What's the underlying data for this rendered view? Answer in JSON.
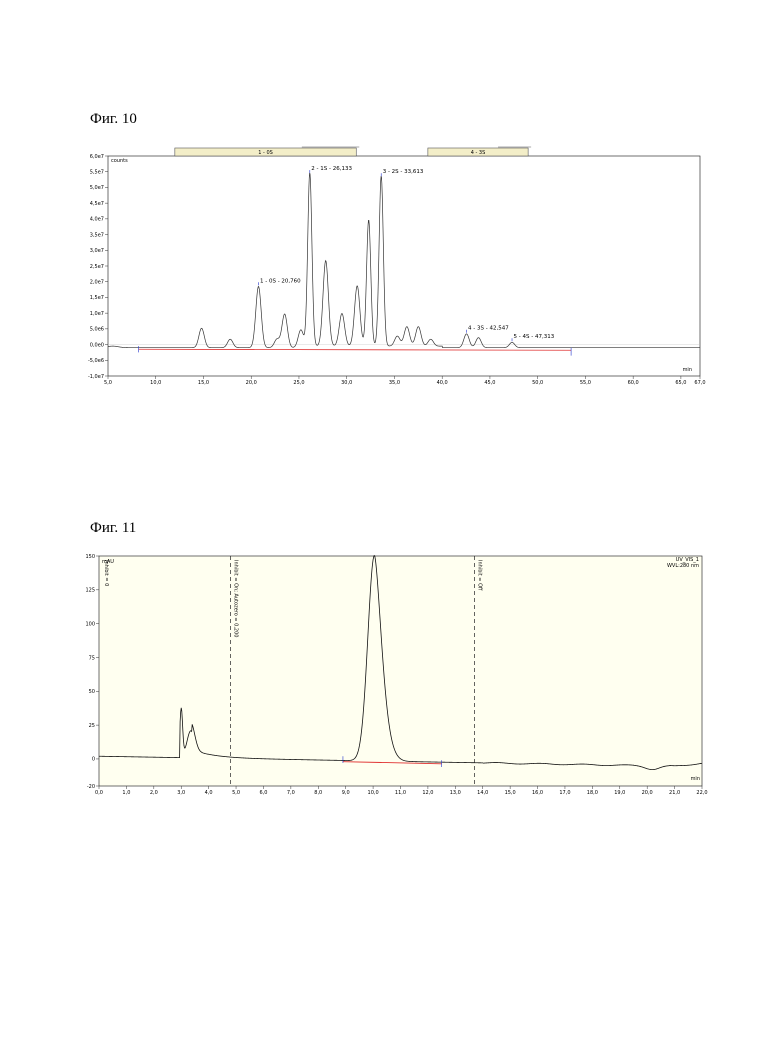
{
  "captions": {
    "fig10": "Фиг. 10",
    "fig11": "Фиг. 11"
  },
  "chart_data": [
    {
      "type": "line",
      "caption": "Фиг. 10",
      "ylabel": "counts",
      "xlabel": "min",
      "xlim": [
        5.0,
        67.0
      ],
      "ylim": [
        -10000000.0,
        60000000.0
      ],
      "x_ticks": [
        "5,0",
        "10,0",
        "15,0",
        "20,0",
        "25,0",
        "30,0",
        "35,0",
        "40,0",
        "45,0",
        "50,0",
        "55,0",
        "60,0",
        "65,0",
        "67,0"
      ],
      "y_ticks": [
        "6,0e7",
        "5,5e7",
        "5,0e7",
        "4,5e7",
        "4,0e7",
        "3,5e7",
        "3,0e7",
        "2,5e7",
        "2,0e7",
        "1,5e7",
        "1,0e7",
        "5,0e6",
        "0,0e0",
        "-5,0e6",
        "-1,0e7"
      ],
      "fraction_boxes": [
        {
          "label": "1 - 0S",
          "from": 12.0,
          "to": 31.0
        },
        {
          "label": "4 - 3S",
          "from": 38.5,
          "to": 49.0
        }
      ],
      "baseline_color": "#e03030",
      "peaks": [
        {
          "x": 14.8,
          "y": 5000000.0
        },
        {
          "x": 17.8,
          "y": 1500000.0
        },
        {
          "x": 20.76,
          "y": 18300000.0,
          "label": "1 - 0S - 20,760"
        },
        {
          "x": 22.7,
          "y": 1500000.0
        },
        {
          "x": 23.5,
          "y": 9500000.0
        },
        {
          "x": 25.2,
          "y": 4500000.0
        },
        {
          "x": 26.133,
          "y": 54000000.0,
          "label": "2 - 1S - 26,133"
        },
        {
          "x": 27.8,
          "y": 26000000.0
        },
        {
          "x": 29.5,
          "y": 9200000.0
        },
        {
          "x": 31.1,
          "y": 18000000.0
        },
        {
          "x": 32.3,
          "y": 39000000.0
        },
        {
          "x": 33.613,
          "y": 53000000.0,
          "label": "3 - 2S - 33,613"
        },
        {
          "x": 35.3,
          "y": 2000000.0
        },
        {
          "x": 36.3,
          "y": 5000000.0
        },
        {
          "x": 37.5,
          "y": 5000000.0
        },
        {
          "x": 38.8,
          "y": 1000000.0
        },
        {
          "x": 42.547,
          "y": 3200000.0,
          "label": "4 - 3S - 42,547"
        },
        {
          "x": 43.8,
          "y": 2000000.0
        },
        {
          "x": 47.313,
          "y": 500000.0,
          "label": "5 - 4S - 47,313"
        }
      ]
    },
    {
      "type": "line",
      "caption": "Фиг. 11",
      "ylabel": "mAU",
      "xlabel": "min",
      "xlim": [
        0.0,
        22.0
      ],
      "ylim": [
        -20,
        150
      ],
      "x_ticks": [
        "0,0",
        "1,0",
        "2,0",
        "3,0",
        "4,0",
        "5,0",
        "6,0",
        "7,0",
        "8,0",
        "9,0",
        "10,0",
        "11,0",
        "12,0",
        "13,0",
        "14,0",
        "15,0",
        "16,0",
        "17,0",
        "18,0",
        "19,0",
        "20,0",
        "21,0",
        "22,0"
      ],
      "y_ticks": [
        "150",
        "125",
        "100",
        "75",
        "50",
        "25",
        "0",
        "-20"
      ],
      "top_right_label": "UV_VIS_1",
      "top_right_sub": "WVL:280 nm",
      "event_markers": [
        {
          "x": 0.0,
          "label": "Inhibit = 0"
        },
        {
          "x": 4.8,
          "label": "Inhibit = On; Autozero = 0,200"
        },
        {
          "x": 13.7,
          "label": "Inhibit = Off"
        }
      ],
      "baseline_color": "#e03030",
      "peaks": [
        {
          "x": 3.0,
          "y": 36
        },
        {
          "x": 3.3,
          "y": 22
        },
        {
          "x": 10.05,
          "y": 148
        }
      ]
    }
  ]
}
